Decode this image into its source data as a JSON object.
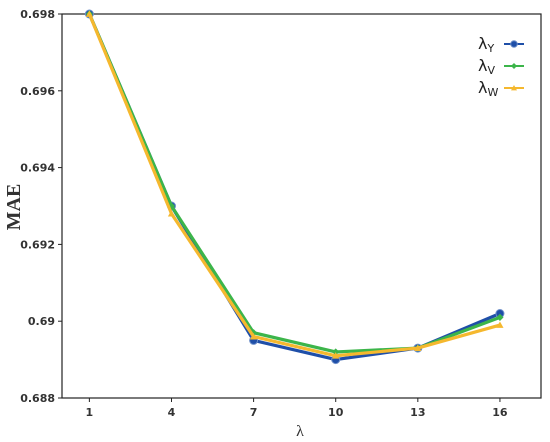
{
  "chart_data": {
    "type": "line",
    "title": "",
    "xlabel": "λ",
    "ylabel": "MAE",
    "x": [
      1,
      4,
      7,
      10,
      13,
      16
    ],
    "xticks": [
      "1",
      "4",
      "7",
      "10",
      "13",
      "16"
    ],
    "yticks": [
      "0.688",
      "0.69",
      "0.692",
      "0.694",
      "0.696",
      "0.698"
    ],
    "ylim": [
      0.688,
      0.698
    ],
    "xlim": [
      0,
      17.5
    ],
    "grid": false,
    "legend_position": "top-right",
    "series": [
      {
        "name": "λY",
        "name_main": "λ",
        "name_sub": "Y",
        "color": "#1f4fa8",
        "marker": "circle",
        "values": [
          0.698,
          0.693,
          0.6895,
          0.689,
          0.6893,
          0.6902
        ]
      },
      {
        "name": "λV",
        "name_main": "λ",
        "name_sub": "V",
        "color": "#3cb54a",
        "marker": "diamond",
        "values": [
          0.698,
          0.693,
          0.6897,
          0.6892,
          0.6893,
          0.6901
        ]
      },
      {
        "name": "λW",
        "name_main": "λ",
        "name_sub": "W",
        "color": "#f5b82e",
        "marker": "triangle",
        "values": [
          0.698,
          0.6928,
          0.6896,
          0.6891,
          0.6893,
          0.6899
        ]
      }
    ]
  }
}
